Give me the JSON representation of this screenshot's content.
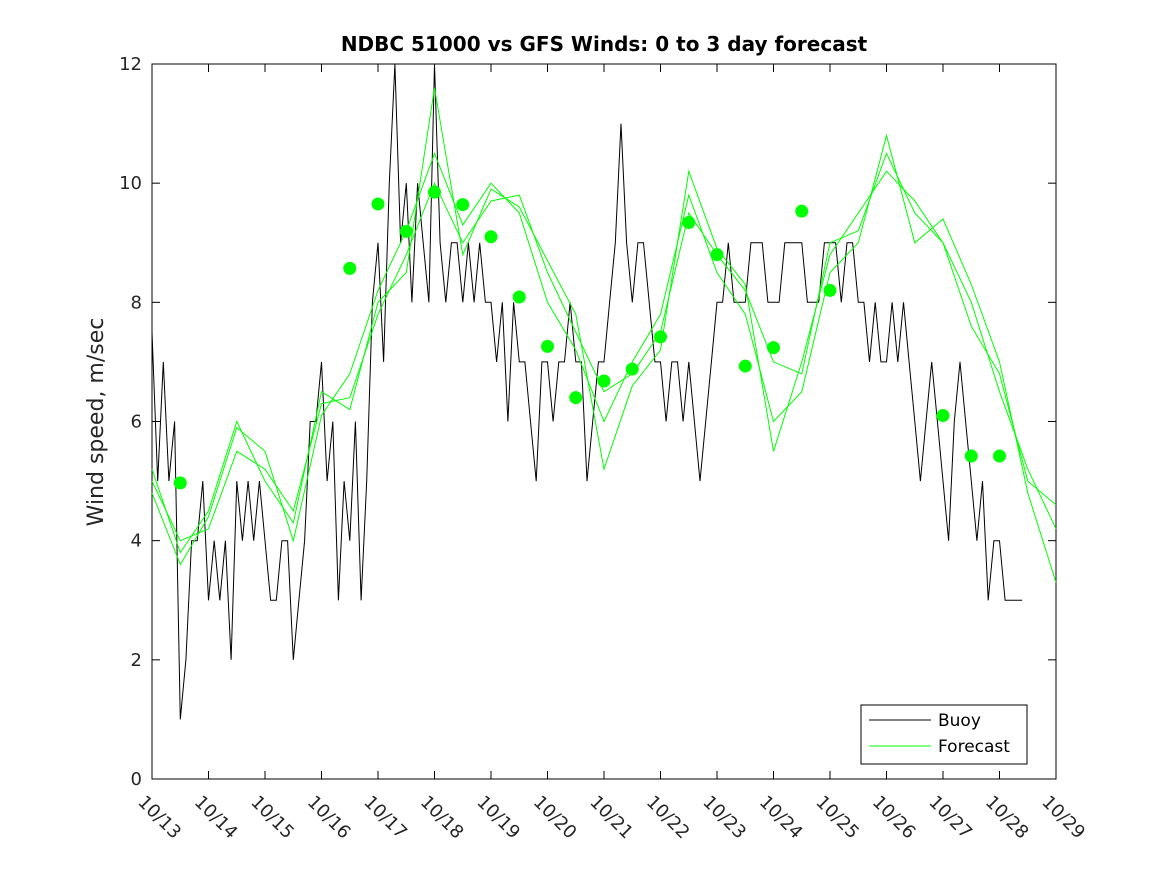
{
  "chart_data": {
    "type": "line",
    "title": "NDBC 51000 vs GFS Winds: 0 to 3 day forecast",
    "ylabel": "Wind speed, m/sec",
    "xlabel": "",
    "xlim": [
      "10/13",
      "10/29"
    ],
    "ylim": [
      0,
      12
    ],
    "x_tick_labels": [
      "10/13",
      "10/14",
      "10/15",
      "10/16",
      "10/17",
      "10/18",
      "10/19",
      "10/20",
      "10/21",
      "10/22",
      "10/23",
      "10/24",
      "10/25",
      "10/26",
      "10/27",
      "10/28",
      "10/29"
    ],
    "y_ticks": [
      0,
      2,
      4,
      6,
      8,
      10,
      12
    ],
    "legend": {
      "position": "bottom-right",
      "entries": [
        "Buoy",
        "Forecast"
      ]
    },
    "colors": {
      "buoy": "#000000",
      "forecast": "#00ff00",
      "markers": "#00ff00"
    },
    "series": [
      {
        "name": "Buoy",
        "x_days_since_10_13": [
          0.0,
          0.1,
          0.2,
          0.3,
          0.4,
          0.5,
          0.6,
          0.7,
          0.8,
          0.9,
          1.0,
          1.1,
          1.2,
          1.3,
          1.4,
          1.5,
          1.6,
          1.7,
          1.8,
          1.9,
          2.0,
          2.1,
          2.2,
          2.3,
          2.4,
          2.5,
          2.6,
          2.7,
          2.8,
          2.9,
          3.0,
          3.1,
          3.2,
          3.3,
          3.4,
          3.5,
          3.6,
          3.7,
          3.8,
          3.9,
          4.0,
          4.1,
          4.2,
          4.3,
          4.4,
          4.5,
          4.6,
          4.7,
          4.8,
          4.9,
          5.0,
          5.1,
          5.2,
          5.3,
          5.4,
          5.5,
          5.6,
          5.7,
          5.8,
          5.9,
          6.0,
          6.1,
          6.2,
          6.3,
          6.4,
          6.5,
          6.6,
          6.7,
          6.8,
          6.9,
          7.0,
          7.1,
          7.2,
          7.3,
          7.4,
          7.5,
          7.6,
          7.7,
          7.8,
          7.9,
          8.0,
          8.1,
          8.2,
          8.3,
          8.4,
          8.5,
          8.6,
          8.7,
          8.8,
          8.9,
          9.0,
          9.1,
          9.2,
          9.3,
          9.4,
          9.5,
          9.6,
          9.7,
          9.8,
          9.9,
          10.0,
          10.1,
          10.2,
          10.3,
          10.4,
          10.5,
          10.6,
          10.7,
          10.8,
          10.9,
          11.0,
          11.1,
          11.2,
          11.3,
          11.4,
          11.5,
          11.6,
          11.7,
          11.8,
          11.9,
          12.0,
          12.1,
          12.2,
          12.3,
          12.4,
          12.5,
          12.6,
          12.7,
          12.8,
          12.9,
          13.0,
          13.1,
          13.2,
          13.3,
          13.4,
          13.5,
          13.6,
          13.7,
          13.8,
          13.9,
          14.0,
          14.1,
          14.2,
          14.3,
          14.4,
          14.5,
          14.6,
          14.7,
          14.8,
          14.9,
          15.0,
          15.1,
          15.2,
          15.3,
          15.4
        ],
        "y": [
          7.5,
          5,
          7,
          5,
          6,
          1,
          2,
          4,
          4,
          5,
          3,
          4,
          3,
          4,
          2,
          5,
          4,
          5,
          4,
          5,
          4,
          3,
          3,
          4,
          4,
          2,
          3,
          4,
          6,
          6,
          7,
          5,
          6,
          3,
          5,
          4,
          6,
          3,
          5,
          8,
          9,
          7,
          10,
          12,
          9,
          10,
          8,
          10,
          9,
          8,
          12,
          9,
          8,
          9,
          9,
          8,
          9,
          8,
          9,
          8,
          8,
          7,
          8,
          6,
          8,
          7,
          7,
          6,
          5,
          7,
          7,
          6,
          7,
          7,
          8,
          7,
          7,
          5,
          6,
          7,
          7,
          8,
          9,
          11,
          9,
          8,
          9,
          9,
          8,
          7,
          7,
          6,
          7,
          7,
          6,
          7,
          6,
          5,
          6,
          7,
          8,
          8,
          9,
          8,
          8,
          8,
          9,
          9,
          9,
          8,
          8,
          8,
          9,
          9,
          9,
          9,
          8,
          8,
          8,
          9,
          9,
          9,
          8,
          9,
          9,
          8,
          8,
          7,
          8,
          7,
          7,
          8,
          7,
          8,
          7,
          6,
          5,
          6,
          7,
          6,
          5,
          4,
          6,
          7,
          6,
          5,
          4,
          5,
          3,
          4,
          4,
          3,
          3,
          3,
          3
        ]
      },
      {
        "name": "Forecast",
        "x_days_since_10_13": [
          0.0,
          0.5,
          1.0,
          1.5,
          2.0,
          2.5,
          3.0,
          3.5,
          4.0,
          4.5,
          5.0,
          5.5,
          6.0,
          6.5,
          7.0,
          7.5,
          8.0,
          8.5,
          9.0,
          9.5,
          10.0,
          10.5,
          11.0,
          11.5,
          12.0,
          12.5,
          13.0,
          13.5,
          14.0,
          14.5,
          15.0,
          15.5,
          16.0
        ],
        "y": [
          5.0,
          4.0,
          4.2,
          5.5,
          5.2,
          4.5,
          6.3,
          6.4,
          7.8,
          8.8,
          10.0,
          9.0,
          9.7,
          9.8,
          8.5,
          7.5,
          6.5,
          6.8,
          7.5,
          9.5,
          8.8,
          8.2,
          7.0,
          6.8,
          9.0,
          9.2,
          10.5,
          9.5,
          9.0,
          8.0,
          6.5,
          5.2,
          4.2
        ]
      },
      {
        "name": "Forecast",
        "x_days_since_10_13": [
          0.0,
          0.5,
          1.0,
          1.5,
          2.0,
          2.5,
          3.0,
          3.5,
          4.0,
          4.5,
          5.0,
          5.5,
          6.0,
          6.5,
          7.0,
          7.5,
          8.0,
          8.5,
          9.0,
          9.5,
          10.0,
          10.5,
          11.0,
          11.5,
          12.0,
          12.5,
          13.0,
          13.5,
          14.0,
          14.5,
          15.0,
          15.5,
          16.0
        ],
        "y": [
          4.8,
          3.6,
          4.4,
          5.9,
          5.5,
          4.0,
          6.1,
          6.8,
          8.2,
          9.2,
          10.5,
          9.3,
          10.0,
          9.5,
          8.0,
          7.2,
          6.0,
          7.0,
          7.8,
          9.8,
          8.5,
          7.8,
          6.0,
          6.5,
          8.5,
          9.0,
          10.8,
          9.0,
          9.4,
          8.3,
          7.0,
          4.8,
          3.3
        ]
      },
      {
        "name": "Forecast",
        "x_days_since_10_13": [
          0.0,
          0.5,
          1.0,
          1.5,
          2.0,
          2.5,
          3.0,
          3.5,
          4.0,
          4.5,
          5.0,
          5.5,
          6.0,
          6.5,
          7.0,
          7.5,
          8.0,
          8.5,
          9.0,
          9.5,
          10.0,
          10.5,
          11.0,
          11.5,
          12.0,
          12.5,
          13.0,
          13.5,
          14.0,
          14.5,
          15.0,
          15.5,
          16.0
        ],
        "y": [
          5.2,
          3.8,
          4.5,
          6.0,
          5.0,
          4.3,
          6.5,
          6.2,
          8.0,
          8.5,
          11.6,
          8.8,
          9.9,
          9.6,
          8.7,
          7.8,
          5.2,
          6.6,
          7.2,
          10.2,
          8.9,
          8.3,
          5.5,
          7.0,
          8.8,
          9.5,
          10.2,
          9.7,
          9.0,
          7.6,
          6.8,
          5.0,
          4.6
        ]
      }
    ],
    "markers": {
      "x_days_since_10_13": [
        0.5,
        3.5,
        4.0,
        4.5,
        5.0,
        5.5,
        6.0,
        6.5,
        7.0,
        7.5,
        8.0,
        8.5,
        9.0,
        9.5,
        10.0,
        10.5,
        11.0,
        11.5,
        12.0,
        14.0,
        14.5,
        15.0
      ],
      "y": [
        4.97,
        8.57,
        9.65,
        9.19,
        9.85,
        9.64,
        9.1,
        8.09,
        7.26,
        6.4,
        6.68,
        6.88,
        7.42,
        9.34,
        8.8,
        6.93,
        7.24,
        9.53,
        8.2,
        6.1,
        5.42,
        5.42
      ]
    }
  }
}
